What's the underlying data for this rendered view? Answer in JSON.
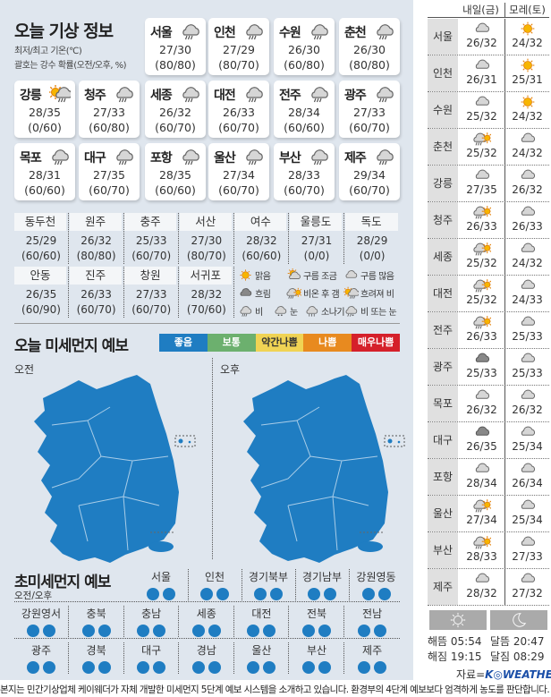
{
  "colors": {
    "background": "#dfe6ee",
    "dust_good": "#1f7dc2"
  },
  "today": {
    "title": "오늘 기상 정보",
    "note1": "최저/최고 기온(℃)",
    "note2": "괄호는 강수 확률(오전/오후, %)",
    "cities": [
      {
        "name": "서울",
        "icon": "rain",
        "temp": "27/30",
        "rain": "(80/80)"
      },
      {
        "name": "인천",
        "icon": "rain",
        "temp": "27/29",
        "rain": "(80/70)"
      },
      {
        "name": "수원",
        "icon": "rain",
        "temp": "26/30",
        "rain": "(60/80)"
      },
      {
        "name": "춘천",
        "icon": "rain",
        "temp": "26/30",
        "rain": "(80/80)"
      },
      {
        "name": "강릉",
        "icon": "sun-then-rain",
        "temp": "28/35",
        "rain": "(0/60)"
      },
      {
        "name": "청주",
        "icon": "rain",
        "temp": "27/33",
        "rain": "(60/80)"
      },
      {
        "name": "세종",
        "icon": "rain",
        "temp": "26/32",
        "rain": "(60/70)"
      },
      {
        "name": "대전",
        "icon": "rain",
        "temp": "26/33",
        "rain": "(60/70)"
      },
      {
        "name": "전주",
        "icon": "rain",
        "temp": "28/34",
        "rain": "(60/60)"
      },
      {
        "name": "광주",
        "icon": "rain",
        "temp": "27/33",
        "rain": "(60/70)"
      },
      {
        "name": "목포",
        "icon": "rain",
        "temp": "28/31",
        "rain": "(60/60)"
      },
      {
        "name": "대구",
        "icon": "rain",
        "temp": "27/35",
        "rain": "(60/70)"
      },
      {
        "name": "포항",
        "icon": "rain",
        "temp": "28/35",
        "rain": "(60/60)"
      },
      {
        "name": "울산",
        "icon": "rain",
        "temp": "27/34",
        "rain": "(60/70)"
      },
      {
        "name": "부산",
        "icon": "rain",
        "temp": "28/33",
        "rain": "(60/70)"
      },
      {
        "name": "제주",
        "icon": "rain",
        "temp": "29/34",
        "rain": "(60/70)"
      }
    ],
    "small_cities": [
      {
        "name": "동두천",
        "temp": "25/29",
        "rain": "(60/60)"
      },
      {
        "name": "원주",
        "temp": "26/32",
        "rain": "(80/80)"
      },
      {
        "name": "충주",
        "temp": "25/33",
        "rain": "(60/70)"
      },
      {
        "name": "서산",
        "temp": "27/30",
        "rain": "(80/70)"
      },
      {
        "name": "여수",
        "temp": "28/32",
        "rain": "(60/60)"
      },
      {
        "name": "울릉도",
        "temp": "27/31",
        "rain": "(0/0)"
      },
      {
        "name": "독도",
        "temp": "28/29",
        "rain": "(0/0)"
      },
      {
        "name": "안동",
        "temp": "26/35",
        "rain": "(60/90)"
      },
      {
        "name": "진주",
        "temp": "26/33",
        "rain": "(60/70)"
      },
      {
        "name": "창원",
        "temp": "27/33",
        "rain": "(60/70)"
      },
      {
        "name": "서귀포",
        "temp": "28/32",
        "rain": "(70/60)"
      }
    ],
    "legend": [
      {
        "icon": "sun",
        "label": "맑음"
      },
      {
        "icon": "partly-cloudy",
        "label": "구름 조금"
      },
      {
        "icon": "cloud",
        "label": "구름 많음"
      },
      {
        "icon": "dark-cloud",
        "label": "흐림"
      },
      {
        "icon": "rain-then-sun",
        "label": "비온 후 갬"
      },
      {
        "icon": "sun-then-rain",
        "label": "흐려져 비"
      },
      {
        "icon": "rain",
        "label": "비"
      },
      {
        "icon": "snow",
        "label": "눈"
      },
      {
        "icon": "shower",
        "label": "소나기"
      },
      {
        "icon": "rain-snow",
        "label": "비 또는 눈"
      }
    ]
  },
  "dust": {
    "title": "오늘 미세먼지 예보",
    "am": "오전",
    "pm": "오후",
    "levels": [
      {
        "label": "좋음",
        "color": "#1f7dc2"
      },
      {
        "label": "보통",
        "color": "#6cb06e"
      },
      {
        "label": "약간나쁨",
        "color": "#f0d354",
        "text": "#333"
      },
      {
        "label": "나쁨",
        "color": "#e88a1f"
      },
      {
        "label": "매우나쁨",
        "color": "#d5202a"
      }
    ]
  },
  "ultrafine": {
    "title": "초미세먼지 예보",
    "subtitle": "오전/오후",
    "regions": [
      {
        "name": "서울",
        "am": "좋음",
        "pm": "좋음"
      },
      {
        "name": "인천",
        "am": "좋음",
        "pm": "좋음"
      },
      {
        "name": "경기북부",
        "am": "좋음",
        "pm": "좋음"
      },
      {
        "name": "경기남부",
        "am": "좋음",
        "pm": "좋음"
      },
      {
        "name": "강원영동",
        "am": "좋음",
        "pm": "좋음"
      },
      {
        "name": "강원영서",
        "am": "좋음",
        "pm": "좋음"
      },
      {
        "name": "충북",
        "am": "좋음",
        "pm": "좋음"
      },
      {
        "name": "충남",
        "am": "좋음",
        "pm": "좋음"
      },
      {
        "name": "세종",
        "am": "좋음",
        "pm": "좋음"
      },
      {
        "name": "대전",
        "am": "좋음",
        "pm": "좋음"
      },
      {
        "name": "전북",
        "am": "좋음",
        "pm": "좋음"
      },
      {
        "name": "전남",
        "am": "좋음",
        "pm": "좋음"
      },
      {
        "name": "광주",
        "am": "좋음",
        "pm": "좋음"
      },
      {
        "name": "경북",
        "am": "좋음",
        "pm": "좋음"
      },
      {
        "name": "대구",
        "am": "좋음",
        "pm": "좋음"
      },
      {
        "name": "경남",
        "am": "좋음",
        "pm": "좋음"
      },
      {
        "name": "울산",
        "am": "좋음",
        "pm": "좋음"
      },
      {
        "name": "부산",
        "am": "좋음",
        "pm": "좋음"
      },
      {
        "name": "제주",
        "am": "좋음",
        "pm": "좋음"
      }
    ]
  },
  "forecast": {
    "tomorrow": "내일(금)",
    "after": "모레(토)",
    "rows": [
      {
        "city": "서울",
        "d1": {
          "icon": "cloud",
          "temp": "26/32"
        },
        "d2": {
          "icon": "sun",
          "temp": "24/32"
        }
      },
      {
        "city": "인천",
        "d1": {
          "icon": "cloud",
          "temp": "26/31"
        },
        "d2": {
          "icon": "sun",
          "temp": "25/31"
        }
      },
      {
        "city": "수원",
        "d1": {
          "icon": "cloud",
          "temp": "25/32"
        },
        "d2": {
          "icon": "sun",
          "temp": "24/32"
        }
      },
      {
        "city": "춘천",
        "d1": {
          "icon": "rain-then-sun",
          "temp": "25/32"
        },
        "d2": {
          "icon": "cloud",
          "temp": "24/32"
        }
      },
      {
        "city": "강릉",
        "d1": {
          "icon": "cloud",
          "temp": "27/35"
        },
        "d2": {
          "icon": "cloud",
          "temp": "26/32"
        }
      },
      {
        "city": "청주",
        "d1": {
          "icon": "rain-then-sun",
          "temp": "26/33"
        },
        "d2": {
          "icon": "cloud",
          "temp": "26/33"
        }
      },
      {
        "city": "세종",
        "d1": {
          "icon": "rain-then-sun",
          "temp": "25/32"
        },
        "d2": {
          "icon": "cloud",
          "temp": "24/32"
        }
      },
      {
        "city": "대전",
        "d1": {
          "icon": "rain-then-sun",
          "temp": "25/32"
        },
        "d2": {
          "icon": "cloud",
          "temp": "24/33"
        }
      },
      {
        "city": "전주",
        "d1": {
          "icon": "rain-then-sun",
          "temp": "26/33"
        },
        "d2": {
          "icon": "cloud",
          "temp": "25/33"
        }
      },
      {
        "city": "광주",
        "d1": {
          "icon": "dark-cloud",
          "temp": "25/33"
        },
        "d2": {
          "icon": "cloud",
          "temp": "25/33"
        }
      },
      {
        "city": "목포",
        "d1": {
          "icon": "cloud",
          "temp": "26/32"
        },
        "d2": {
          "icon": "cloud",
          "temp": "26/32"
        }
      },
      {
        "city": "대구",
        "d1": {
          "icon": "dark-cloud",
          "temp": "26/35"
        },
        "d2": {
          "icon": "cloud",
          "temp": "25/34"
        }
      },
      {
        "city": "포항",
        "d1": {
          "icon": "cloud",
          "temp": "28/34"
        },
        "d2": {
          "icon": "cloud",
          "temp": "26/34"
        }
      },
      {
        "city": "울산",
        "d1": {
          "icon": "rain-then-sun",
          "temp": "27/34"
        },
        "d2": {
          "icon": "cloud",
          "temp": "25/34"
        }
      },
      {
        "city": "부산",
        "d1": {
          "icon": "rain-then-sun",
          "temp": "28/33"
        },
        "d2": {
          "icon": "cloud",
          "temp": "27/33"
        }
      },
      {
        "city": "제주",
        "d1": {
          "icon": "cloud",
          "temp": "28/32"
        },
        "d2": {
          "icon": "cloud",
          "temp": "27/32"
        }
      }
    ]
  },
  "astro": {
    "sunrise": "해뜸 05:54",
    "sunset": "해짐 19:15",
    "moonrise": "달뜸 20:47",
    "moonset": "달짐 08:29"
  },
  "source": {
    "prefix": "자료=",
    "brand": "K◎WEATHER"
  },
  "footer": "본지는 민간기상업체 케이웨더가 자체 개발한 미세먼지 5단계 예보 시스템을 소개하고 있습니다. 환경부의 4단계 예보보다 엄격하게 농도를 판단합니다."
}
